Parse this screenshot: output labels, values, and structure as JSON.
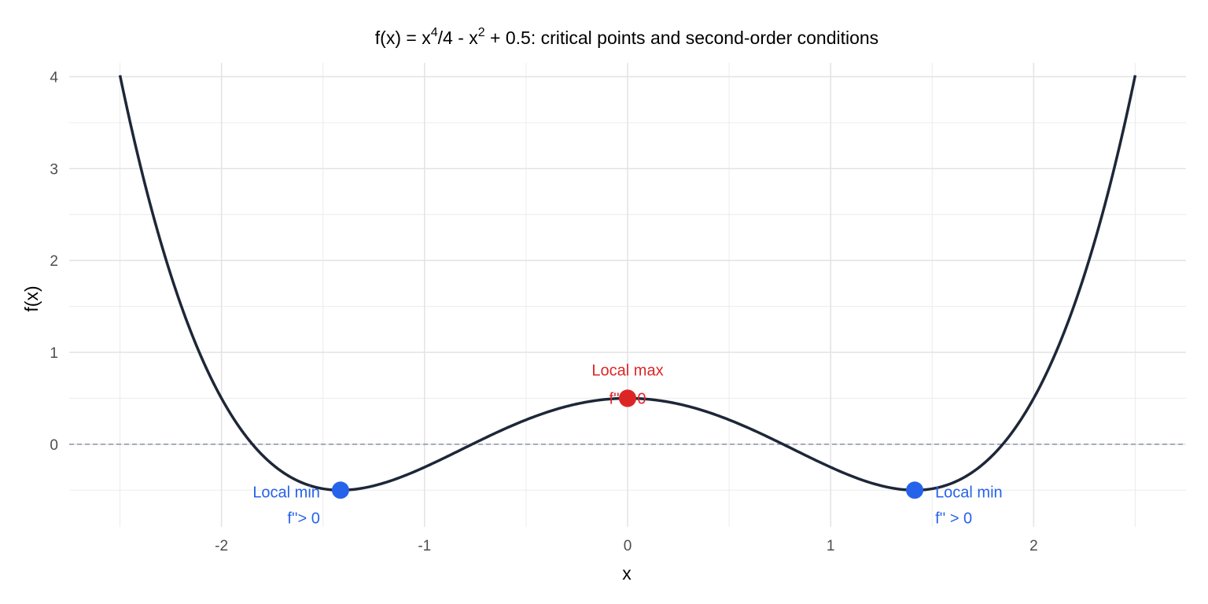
{
  "chart_data": {
    "type": "line",
    "title": {
      "prefix": "f(x) = x",
      "exp1": "4",
      "mid": "/4 - x",
      "exp2": "2",
      "suffix": " + 0.5: critical points and second-order conditions"
    },
    "xlabel": "x",
    "ylabel": "f(x)",
    "xlim": [
      -2.75,
      2.75
    ],
    "ylim": [
      -0.9,
      4.15
    ],
    "x_ticks": [
      -2,
      -1,
      0,
      1,
      2
    ],
    "x_tick_labels": [
      "-2",
      "-1",
      "0",
      "1",
      "2"
    ],
    "y_ticks": [
      0,
      1,
      2,
      3,
      4
    ],
    "y_tick_labels": [
      "0",
      "1",
      "2",
      "3",
      "4"
    ],
    "grid": true,
    "function": "x^4/4 - x^2 + 0.5",
    "x_range": [
      -2.5,
      2.5
    ],
    "reference_line": {
      "y": 0,
      "style": "dashed",
      "color": "#8a93b2"
    },
    "series": [
      {
        "color": "#1e2738",
        "x": [
          -2.5,
          -2.25,
          -2.0,
          -1.75,
          -1.5,
          -1.25,
          -1.0,
          -0.75,
          -0.5,
          -0.25,
          0.0,
          0.25,
          0.5,
          0.75,
          1.0,
          1.25,
          1.5,
          1.75,
          2.0,
          2.25,
          2.5
        ],
        "y": [
          4.02,
          1.84,
          0.5,
          -0.19,
          -0.48,
          -0.47,
          -0.25,
          0.02,
          0.27,
          0.44,
          0.5,
          0.44,
          0.27,
          0.02,
          -0.25,
          -0.47,
          -0.48,
          -0.19,
          0.5,
          1.84,
          4.02
        ]
      }
    ],
    "points": [
      {
        "x": -1.414,
        "y": -0.5,
        "color": "#2563eb",
        "label1": "Local min",
        "label2": "f''> 0",
        "label_side": "left"
      },
      {
        "x": 0.0,
        "y": 0.5,
        "color": "#dc2626",
        "label1": "Local max",
        "label2": "f'' < 0",
        "label_side": "top"
      },
      {
        "x": 1.414,
        "y": -0.5,
        "color": "#2563eb",
        "label1": "Local min",
        "label2": "f'' > 0",
        "label_side": "right"
      }
    ]
  }
}
